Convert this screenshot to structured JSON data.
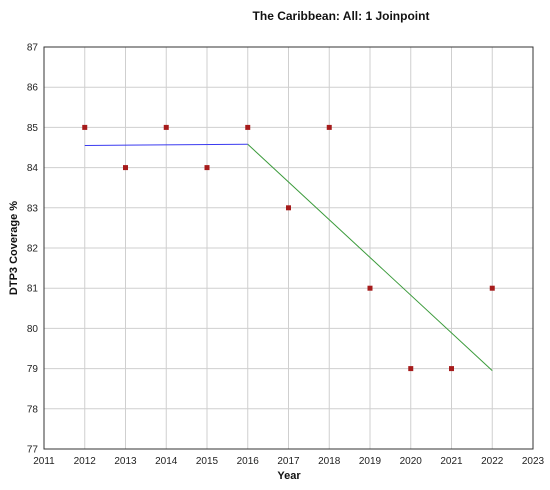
{
  "chart_data": {
    "type": "scatter",
    "title": "The Caribbean: All: 1 Joinpoint",
    "xlabel": "Year",
    "ylabel": "DTP3 Coverage %",
    "xlim": [
      2011,
      2023
    ],
    "ylim": [
      77,
      87
    ],
    "xticks": [
      "2011",
      "2012",
      "2013",
      "2014",
      "2015",
      "2016",
      "2017",
      "2018",
      "2019",
      "2020",
      "2021",
      "2022",
      "2023"
    ],
    "yticks": [
      "77",
      "78",
      "79",
      "80",
      "81",
      "82",
      "83",
      "84",
      "85",
      "86",
      "87"
    ],
    "grid": true,
    "series": [
      {
        "kind": "points",
        "color": "#a61b1b",
        "x": [
          2012,
          2013,
          2014,
          2015,
          2016,
          2017,
          2018,
          2019,
          2020,
          2021,
          2022
        ],
        "y": [
          85,
          84,
          85,
          84,
          85,
          83,
          85,
          81,
          79,
          79,
          81
        ]
      },
      {
        "kind": "line",
        "color": "#3a3af0",
        "x": [
          2012,
          2016
        ],
        "y": [
          84.55,
          84.58
        ]
      },
      {
        "kind": "line",
        "color": "#3a9a3a",
        "x": [
          2016,
          2022
        ],
        "y": [
          84.58,
          78.95
        ]
      }
    ]
  }
}
